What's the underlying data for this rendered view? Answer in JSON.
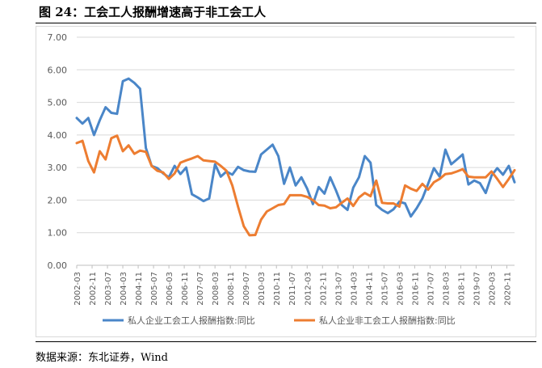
{
  "figure": {
    "title": "图 24：工会工人报酬增速高于非工会工人",
    "source": "数据来源：东北证券，Wind"
  },
  "chart_data": {
    "type": "line",
    "title": "",
    "xlabel": "",
    "ylabel": "",
    "ylim": [
      0,
      7
    ],
    "yticks": [
      "0.00",
      "1.00",
      "2.00",
      "3.00",
      "4.00",
      "5.00",
      "6.00",
      "7.00"
    ],
    "grid": true,
    "legend_position": "bottom",
    "x_tick_labels": [
      "2002-03",
      "2002-11",
      "2003-07",
      "2004-03",
      "2004-11",
      "2005-07",
      "2006-03",
      "2006-11",
      "2007-07",
      "2008-03",
      "2008-11",
      "2009-07",
      "2010-03",
      "2010-11",
      "2011-07",
      "2012-03",
      "2012-11",
      "2013-07",
      "2014-03",
      "2014-11",
      "2015-07",
      "2016-03",
      "2016-11",
      "2017-07",
      "2018-03",
      "2018-11",
      "2019-07",
      "2020-03",
      "2020-11"
    ],
    "x": [
      "2002-03",
      "2002-06",
      "2002-09",
      "2002-12",
      "2003-03",
      "2003-06",
      "2003-09",
      "2003-12",
      "2004-03",
      "2004-06",
      "2004-09",
      "2004-12",
      "2005-03",
      "2005-06",
      "2005-09",
      "2005-12",
      "2006-03",
      "2006-06",
      "2006-09",
      "2006-12",
      "2007-03",
      "2007-06",
      "2007-09",
      "2007-12",
      "2008-03",
      "2008-06",
      "2008-09",
      "2008-12",
      "2009-03",
      "2009-06",
      "2009-09",
      "2009-12",
      "2010-03",
      "2010-06",
      "2010-09",
      "2010-12",
      "2011-03",
      "2011-06",
      "2011-09",
      "2011-12",
      "2012-03",
      "2012-06",
      "2012-09",
      "2012-12",
      "2013-03",
      "2013-06",
      "2013-09",
      "2013-12",
      "2014-03",
      "2014-06",
      "2014-09",
      "2014-12",
      "2015-03",
      "2015-06",
      "2015-09",
      "2015-12",
      "2016-03",
      "2016-06",
      "2016-09",
      "2016-12",
      "2017-03",
      "2017-06",
      "2017-09",
      "2017-12",
      "2018-03",
      "2018-06",
      "2018-09",
      "2018-12",
      "2019-03",
      "2019-06",
      "2019-09",
      "2019-12",
      "2020-03",
      "2020-06",
      "2020-09",
      "2020-12",
      "2021-03"
    ],
    "series": [
      {
        "name": "私人企业工会工人报酬指数:同比",
        "color": "#4a86c8",
        "values": [
          4.52,
          4.35,
          4.52,
          4.0,
          4.45,
          4.85,
          4.68,
          4.65,
          5.65,
          5.73,
          5.6,
          5.42,
          3.6,
          3.05,
          2.98,
          2.82,
          2.7,
          3.05,
          2.8,
          3.0,
          2.18,
          2.08,
          1.97,
          2.05,
          3.1,
          2.72,
          2.88,
          2.78,
          3.02,
          2.92,
          2.88,
          2.87,
          3.4,
          3.55,
          3.7,
          3.35,
          2.5,
          3.0,
          2.45,
          2.7,
          2.35,
          1.88,
          2.4,
          2.2,
          2.7,
          2.3,
          1.85,
          1.7,
          2.38,
          2.7,
          3.35,
          3.15,
          1.85,
          1.7,
          1.6,
          1.72,
          1.95,
          1.9,
          1.5,
          1.75,
          2.05,
          2.5,
          2.98,
          2.72,
          3.55,
          3.1,
          3.25,
          3.4,
          2.48,
          2.6,
          2.52,
          2.22,
          2.75,
          2.98,
          2.78,
          3.05,
          2.55
        ]
      },
      {
        "name": "私人企业非工会工人报酬指数:同比",
        "color": "#ed7d31",
        "values": [
          3.75,
          3.82,
          3.2,
          2.85,
          3.5,
          3.25,
          3.9,
          3.98,
          3.5,
          3.68,
          3.42,
          3.52,
          3.48,
          3.05,
          2.9,
          2.85,
          2.65,
          2.82,
          3.15,
          3.22,
          3.28,
          3.35,
          3.22,
          3.2,
          3.18,
          3.05,
          2.9,
          2.45,
          1.8,
          1.2,
          0.92,
          0.93,
          1.4,
          1.65,
          1.75,
          1.85,
          1.88,
          2.15,
          2.15,
          2.15,
          2.1,
          2.0,
          1.85,
          1.83,
          1.75,
          1.78,
          1.92,
          2.05,
          1.82,
          2.08,
          2.22,
          2.12,
          2.6,
          1.92,
          1.9,
          1.9,
          1.8,
          2.45,
          2.35,
          2.28,
          2.5,
          2.32,
          2.55,
          2.65,
          2.8,
          2.82,
          2.88,
          2.95,
          2.72,
          2.7,
          2.7,
          2.7,
          2.88,
          2.65,
          2.4,
          2.65,
          2.92
        ]
      }
    ]
  }
}
